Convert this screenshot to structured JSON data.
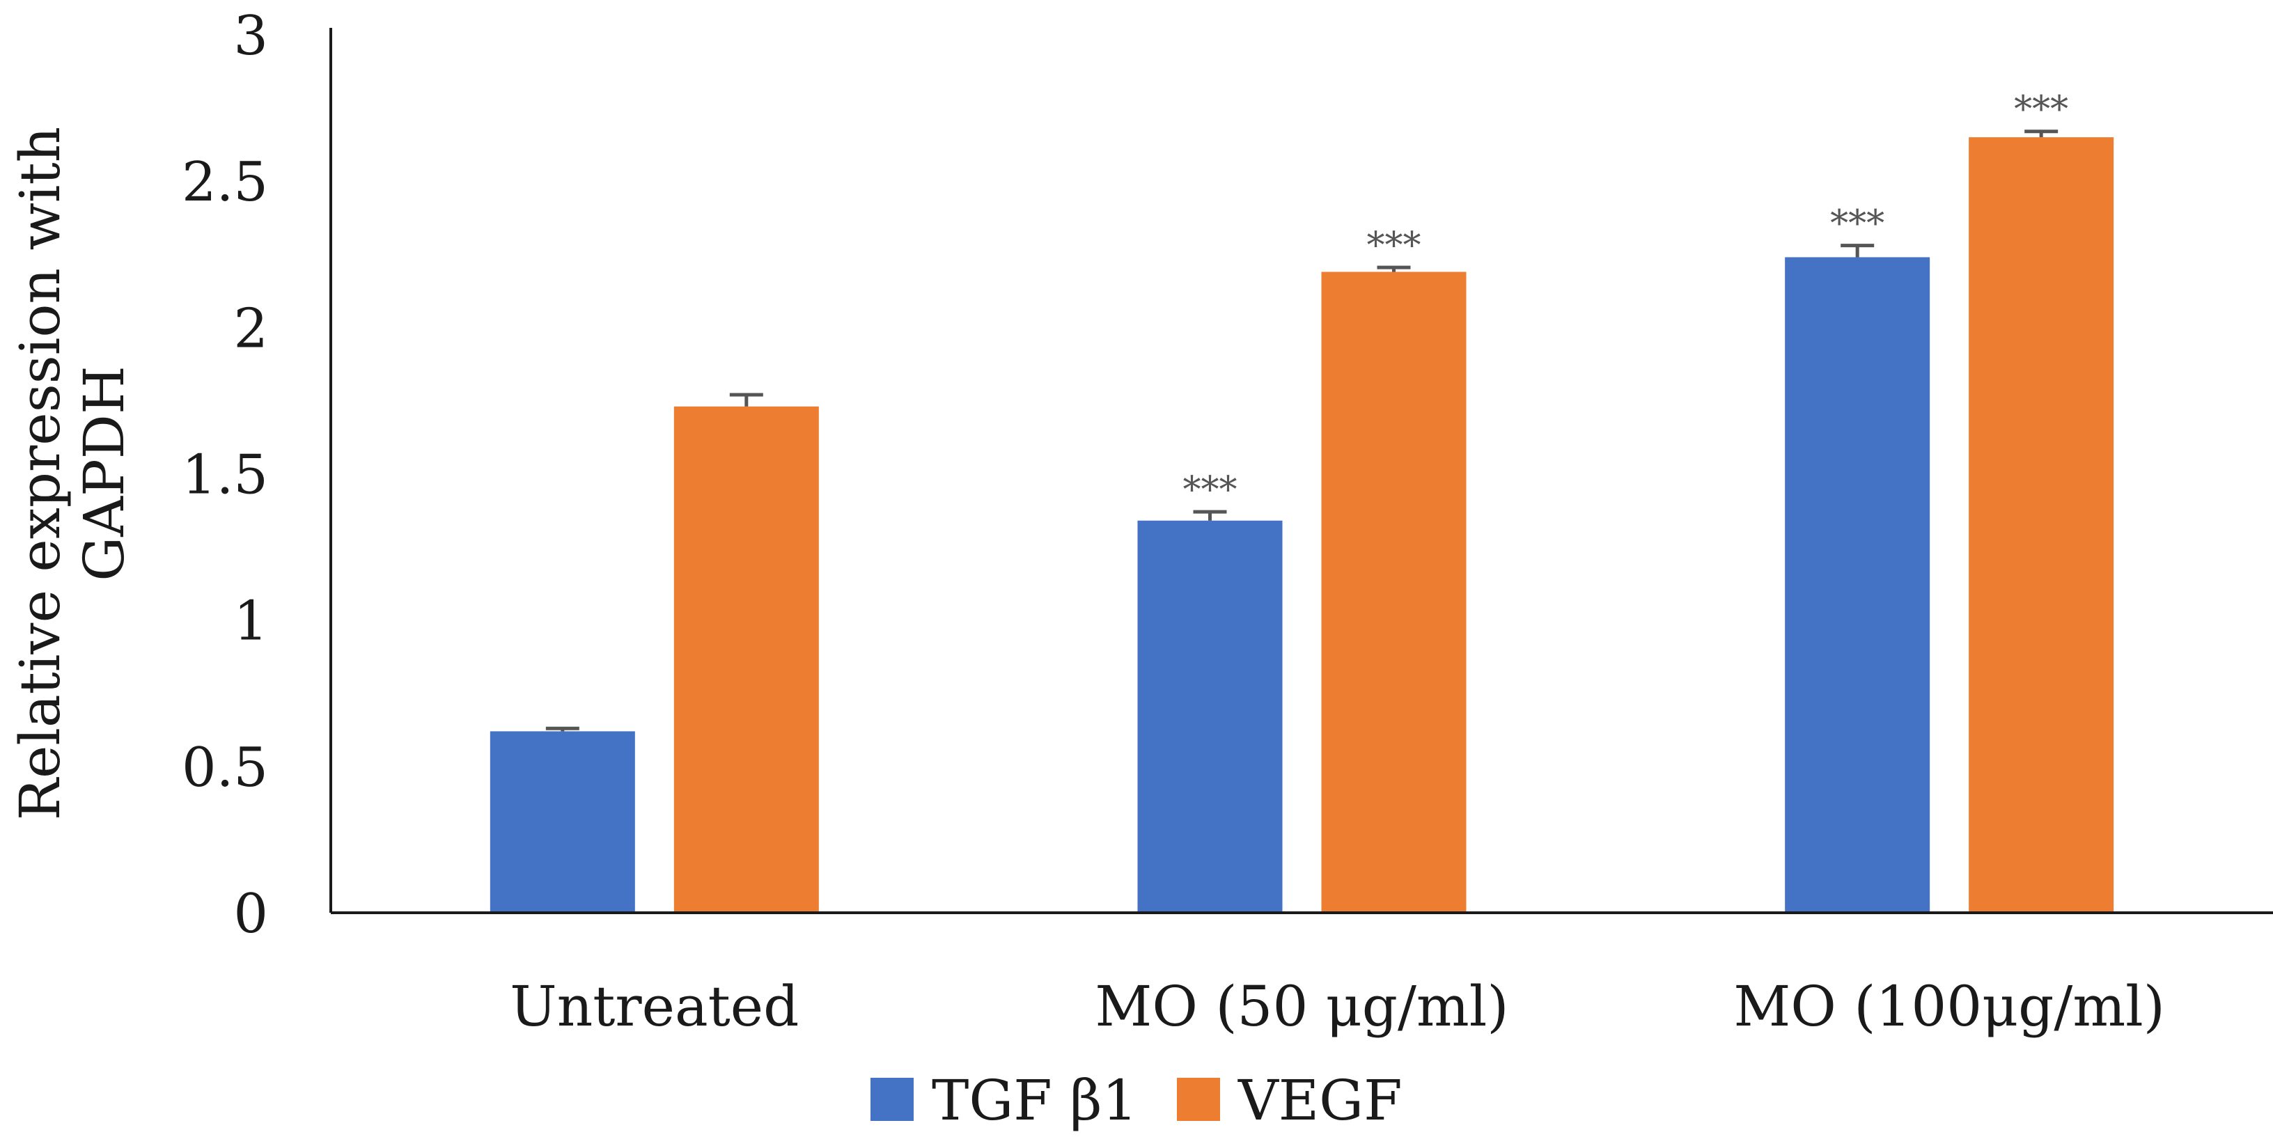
{
  "chart_data": {
    "type": "bar",
    "title": "",
    "xlabel": "",
    "ylabel": [
      "Relative expression with",
      "GAPDH"
    ],
    "ylim": [
      0,
      3
    ],
    "yticks": [
      0,
      0.5,
      1,
      1.5,
      2,
      2.5,
      3
    ],
    "ytick_labels": [
      "0",
      "0.5",
      "1",
      "1.5",
      "2",
      "2.5",
      "3"
    ],
    "categories": [
      "Untreated",
      "MO (50 μg/ml)",
      "MO (100μg/ml)"
    ],
    "series": [
      {
        "name": "TGF β1",
        "color": "#4472C4",
        "values": [
          0.62,
          1.34,
          2.24
        ],
        "errors": [
          0.01,
          0.03,
          0.04
        ],
        "significance": [
          "",
          "***",
          "***"
        ]
      },
      {
        "name": "VEGF",
        "color": "#ED7D31",
        "values": [
          1.73,
          2.19,
          2.65
        ],
        "errors": [
          0.04,
          0.015,
          0.02
        ],
        "significance": [
          "",
          "***",
          "***"
        ]
      }
    ],
    "legend_position": "bottom",
    "grid": false
  }
}
